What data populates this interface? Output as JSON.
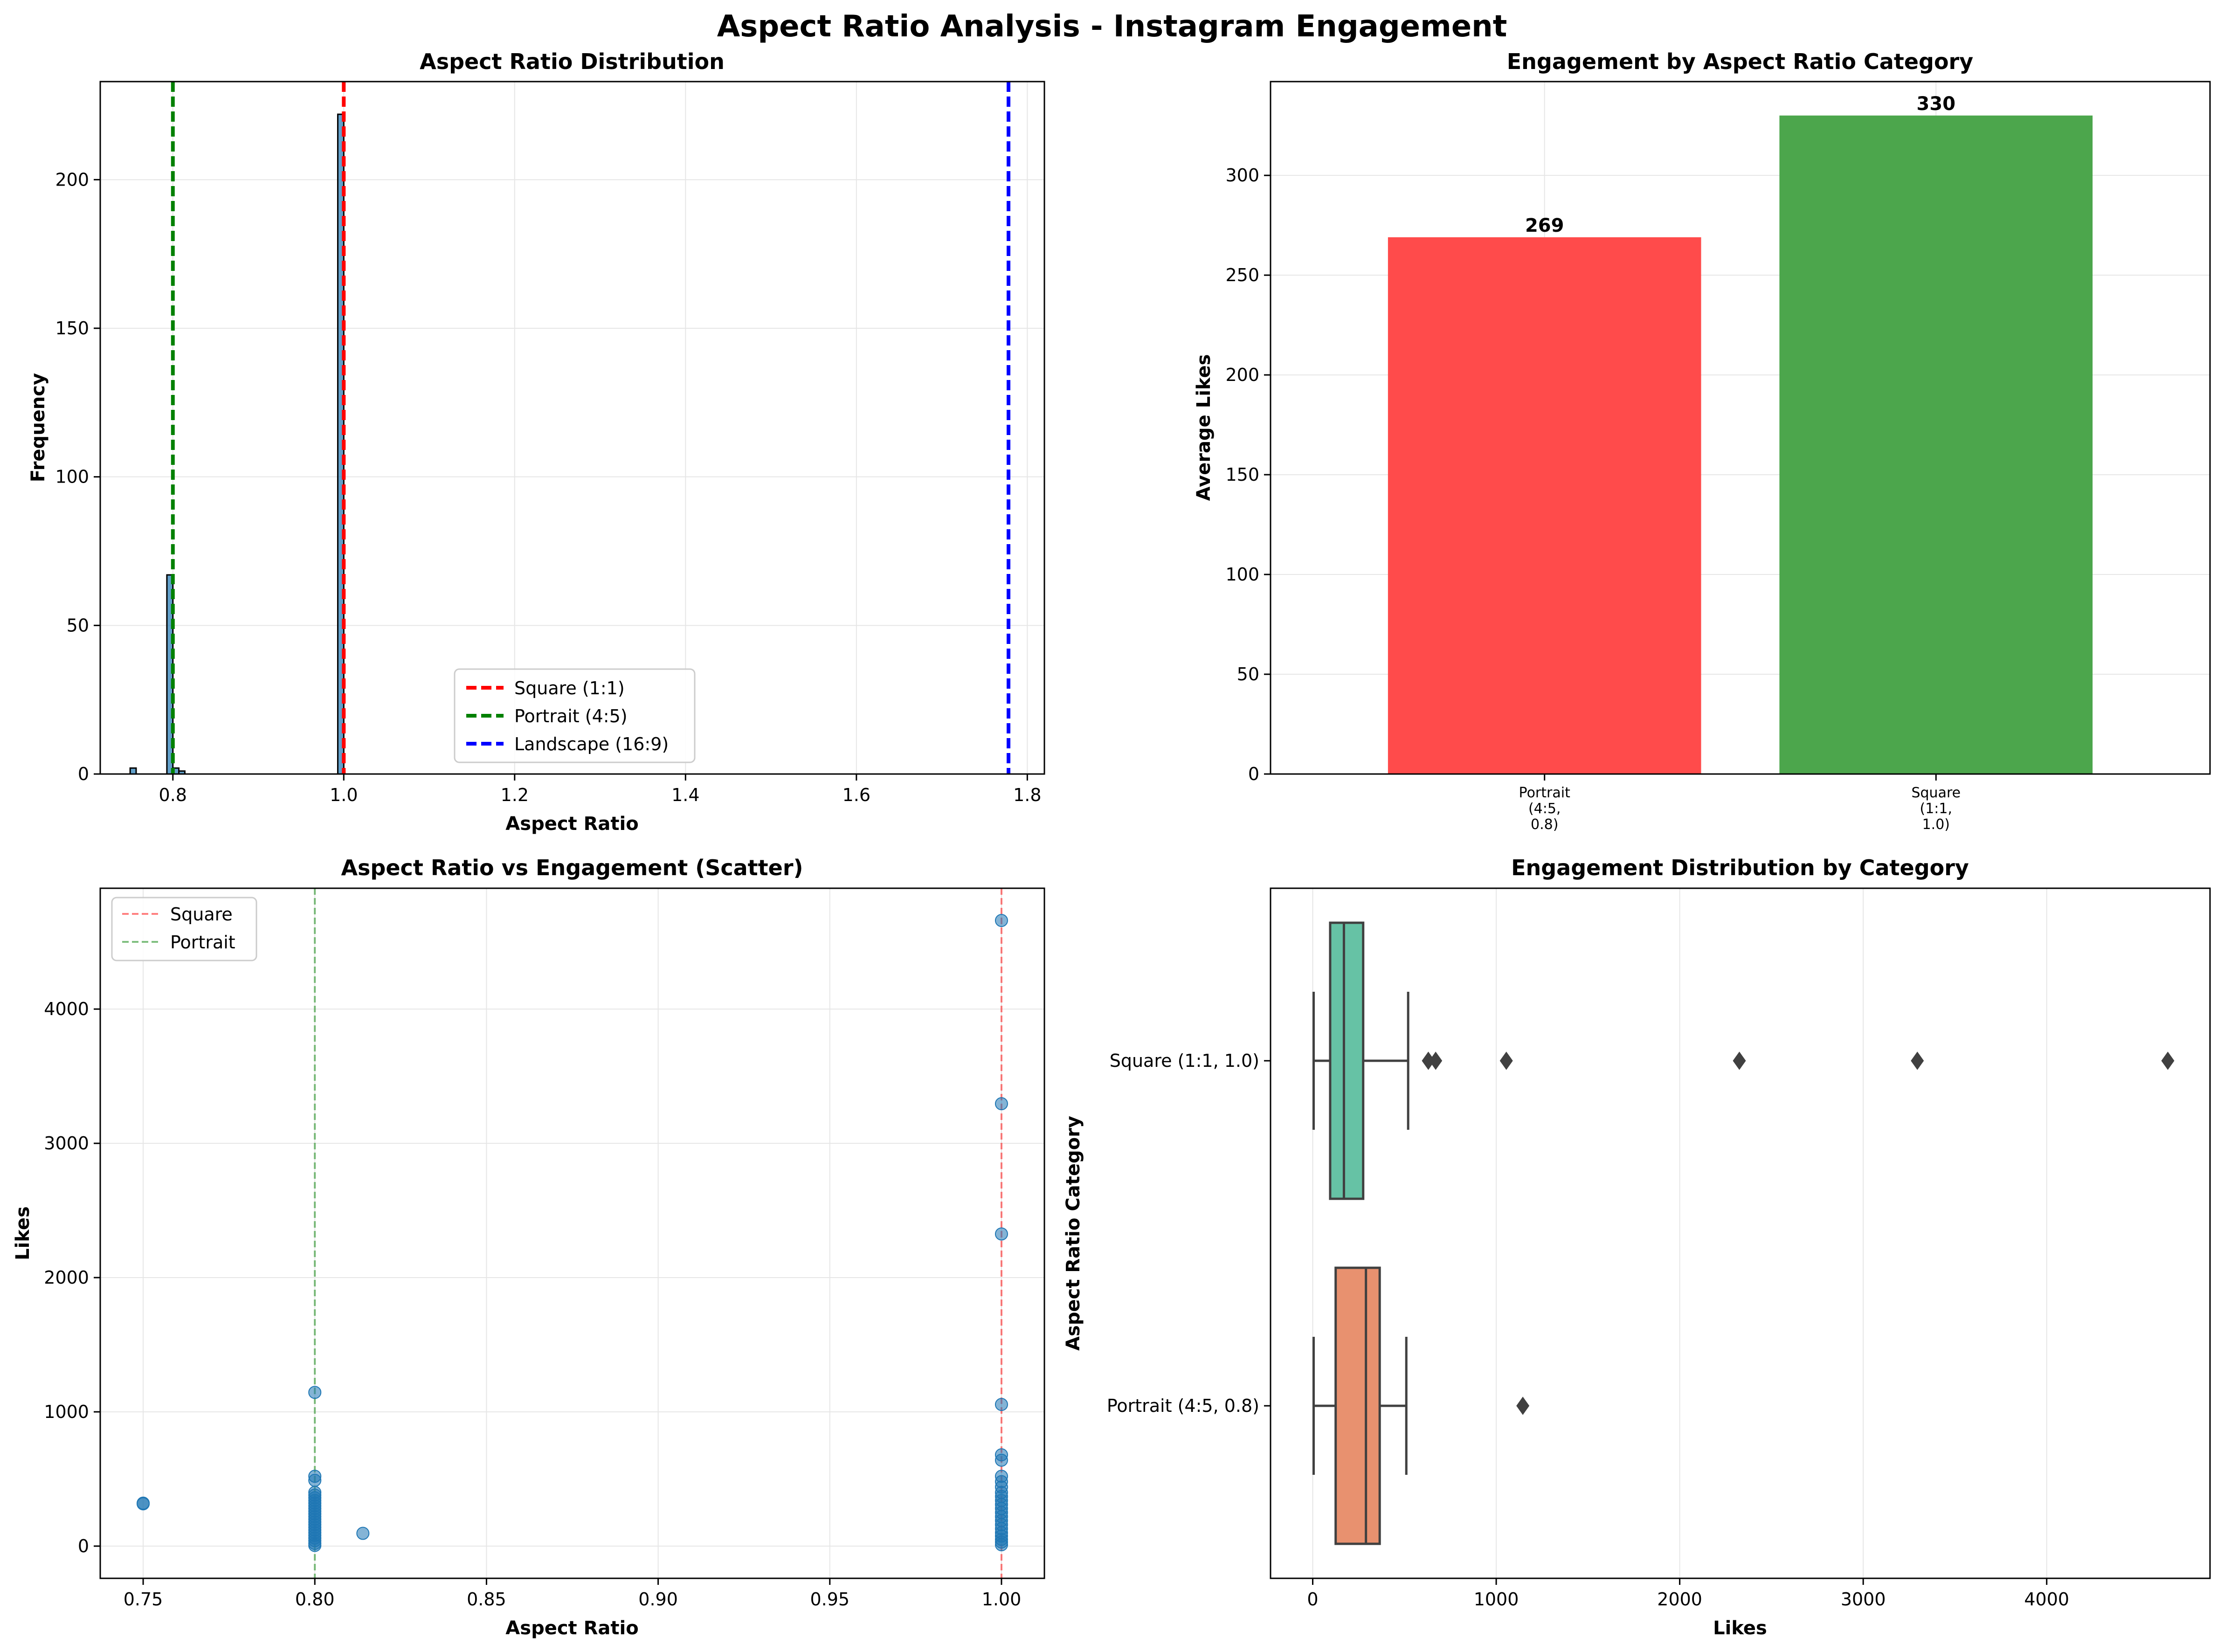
{
  "figure_title": "Aspect Ratio Analysis - Instagram Engagement",
  "chart_data": [
    {
      "id": "hist",
      "type": "bar",
      "title": "Aspect Ratio Distribution",
      "xlabel": "Aspect Ratio",
      "ylabel": "Frequency",
      "xlim": [
        0.715,
        1.82
      ],
      "ylim": [
        0,
        233
      ],
      "xticks": [
        0.8,
        1.0,
        1.2,
        1.4,
        1.6,
        1.8
      ],
      "xtick_labels": [
        "0.8",
        "1.0",
        "1.2",
        "1.4",
        "1.6",
        "1.8"
      ],
      "yticks": [
        0,
        50,
        100,
        150,
        200
      ],
      "ytick_labels": [
        "0",
        "50",
        "100",
        "150",
        "200"
      ],
      "grid": true,
      "bar_color": "#1f77b4",
      "bins": [
        {
          "x0": 0.75,
          "x1": 0.757,
          "count": 2
        },
        {
          "x0": 0.793,
          "x1": 0.8,
          "count": 67
        },
        {
          "x0": 0.8,
          "x1": 0.807,
          "count": 2
        },
        {
          "x0": 0.807,
          "x1": 0.814,
          "count": 1
        },
        {
          "x0": 0.993,
          "x1": 1.0,
          "count": 222
        }
      ],
      "reference_lines": [
        {
          "x": 1.0,
          "name": "Square (1:1)",
          "color": "#ff0000"
        },
        {
          "x": 0.8,
          "name": "Portrait (4:5)",
          "color": "#008000"
        },
        {
          "x": 1.778,
          "name": "Landscape (16:9)",
          "color": "#0000ff"
        }
      ],
      "legend_position": "lower center"
    },
    {
      "id": "avgbar",
      "type": "bar",
      "title": "Engagement by Aspect Ratio Category",
      "xlabel": "",
      "ylabel": "Average Likes",
      "ylim": [
        0,
        347
      ],
      "yticks": [
        0,
        50,
        100,
        150,
        200,
        250,
        300
      ],
      "ytick_labels": [
        "0",
        "50",
        "100",
        "150",
        "200",
        "250",
        "300"
      ],
      "grid": true,
      "categories": [
        [
          "Portrait",
          "(4:5,",
          "0.8)"
        ],
        [
          "Square",
          "(1:1,",
          "1.0)"
        ]
      ],
      "values": [
        269,
        330
      ],
      "value_labels": [
        "269",
        "330"
      ],
      "colors": [
        "#ff4b4b",
        "#4ca64c"
      ]
    },
    {
      "id": "scatter",
      "type": "scatter",
      "title": "Aspect Ratio vs Engagement (Scatter)",
      "xlabel": "Aspect Ratio",
      "ylabel": "Likes",
      "xlim": [
        0.7375,
        1.0125
      ],
      "ylim": [
        -240,
        4900
      ],
      "xticks": [
        0.75,
        0.8,
        0.85,
        0.9,
        0.95,
        1.0
      ],
      "xtick_labels": [
        "0.75",
        "0.80",
        "0.85",
        "0.90",
        "0.95",
        "1.00"
      ],
      "yticks": [
        0,
        1000,
        2000,
        3000,
        4000
      ],
      "ytick_labels": [
        "0",
        "1000",
        "2000",
        "3000",
        "4000"
      ],
      "grid": true,
      "point_color": "#1f77b4",
      "points": [
        [
          0.75,
          315
        ],
        [
          0.75,
          320
        ],
        [
          0.814,
          95
        ],
        [
          0.8,
          1145
        ],
        [
          0.8,
          520
        ],
        [
          0.8,
          490
        ],
        [
          0.8,
          400
        ],
        [
          0.8,
          380
        ],
        [
          0.8,
          360
        ],
        [
          0.8,
          340
        ],
        [
          0.8,
          320
        ],
        [
          0.8,
          300
        ],
        [
          0.8,
          280
        ],
        [
          0.8,
          260
        ],
        [
          0.8,
          240
        ],
        [
          0.8,
          220
        ],
        [
          0.8,
          200
        ],
        [
          0.8,
          180
        ],
        [
          0.8,
          160
        ],
        [
          0.8,
          140
        ],
        [
          0.8,
          120
        ],
        [
          0.8,
          100
        ],
        [
          0.8,
          80
        ],
        [
          0.8,
          60
        ],
        [
          0.8,
          40
        ],
        [
          0.8,
          20
        ],
        [
          0.8,
          5
        ],
        [
          1.0,
          4660
        ],
        [
          1.0,
          3295
        ],
        [
          1.0,
          2325
        ],
        [
          1.0,
          1055
        ],
        [
          1.0,
          680
        ],
        [
          1.0,
          640
        ],
        [
          1.0,
          520
        ],
        [
          1.0,
          480
        ],
        [
          1.0,
          440
        ],
        [
          1.0,
          400
        ],
        [
          1.0,
          370
        ],
        [
          1.0,
          340
        ],
        [
          1.0,
          310
        ],
        [
          1.0,
          280
        ],
        [
          1.0,
          250
        ],
        [
          1.0,
          220
        ],
        [
          1.0,
          190
        ],
        [
          1.0,
          160
        ],
        [
          1.0,
          130
        ],
        [
          1.0,
          100
        ],
        [
          1.0,
          75
        ],
        [
          1.0,
          50
        ],
        [
          1.0,
          30
        ],
        [
          1.0,
          10
        ]
      ],
      "reference_lines": [
        {
          "x": 1.0,
          "name": "Square",
          "color": "#ff0000"
        },
        {
          "x": 0.8,
          "name": "Portrait",
          "color": "#008000"
        }
      ],
      "legend_position": "upper left"
    },
    {
      "id": "boxplot",
      "type": "box",
      "title": "Engagement Distribution by Category",
      "xlabel": "Likes",
      "ylabel": "Aspect Ratio Category",
      "xlim": [
        -230,
        4890
      ],
      "xticks": [
        0,
        1000,
        2000,
        3000,
        4000
      ],
      "xtick_labels": [
        "0",
        "1000",
        "2000",
        "3000",
        "4000"
      ],
      "grid": true,
      "boxes": [
        {
          "label": "Square (1:1, 1.0)",
          "color": "#66c2a5",
          "whisker_low": 5,
          "q1": 95,
          "median": 170,
          "q3": 275,
          "whisker_high": 520,
          "outliers": [
            630,
            670,
            1055,
            2325,
            3295,
            4660
          ]
        },
        {
          "label": "Portrait (4:5, 0.8)",
          "color": "#e8916f",
          "whisker_low": 5,
          "q1": 125,
          "median": 290,
          "q3": 365,
          "whisker_high": 510,
          "outliers": [
            1145
          ]
        }
      ]
    }
  ]
}
